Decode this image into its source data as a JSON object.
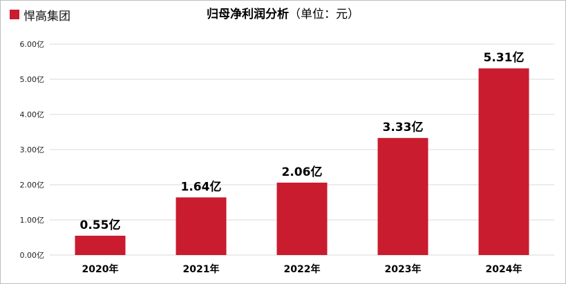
{
  "legend": {
    "label": "悍高集团",
    "color": "#C91C2F"
  },
  "title": {
    "main": "归母净利润分析",
    "unit": "（单位：元）"
  },
  "colors": {
    "bar": "#C91C2F",
    "grid": "#d9d9d9",
    "axis_text": "#222222"
  },
  "chart_data": {
    "type": "bar",
    "categories": [
      "2020年",
      "2021年",
      "2022年",
      "2023年",
      "2024年"
    ],
    "series": [
      {
        "name": "悍高集团",
        "values": [
          0.55,
          1.64,
          2.06,
          3.33,
          5.31
        ]
      }
    ],
    "data_labels": [
      "0.55亿",
      "1.64亿",
      "2.06亿",
      "3.33亿",
      "5.31亿"
    ],
    "yticks": [
      0,
      1,
      2,
      3,
      4,
      5,
      6
    ],
    "ytick_labels": [
      "0.00亿",
      "1.00亿",
      "2.00亿",
      "3.00亿",
      "4.00亿",
      "5.00亿",
      "6.00亿"
    ],
    "ylim": [
      0,
      6
    ],
    "grid": true,
    "legend_position": "top-left"
  }
}
